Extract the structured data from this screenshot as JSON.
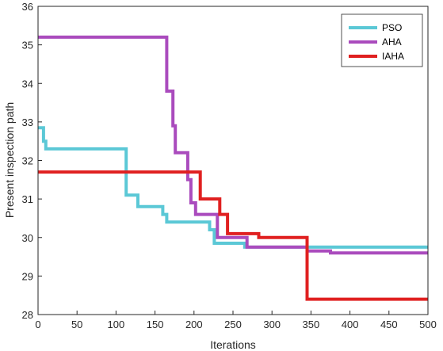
{
  "chart_data": {
    "type": "line",
    "xlabel": "Iterations",
    "ylabel": "Present inspection path",
    "xlim": [
      0,
      500
    ],
    "ylim": [
      28,
      36
    ],
    "xticks": [
      "0",
      "50",
      "100",
      "150",
      "200",
      "250",
      "300",
      "350",
      "400",
      "450",
      "500"
    ],
    "yticks": [
      "28",
      "29",
      "30",
      "31",
      "32",
      "33",
      "34",
      "35",
      "36"
    ],
    "legend_position": "top-right",
    "grid": false,
    "series": [
      {
        "name": "PSO",
        "color": "#5bc8d6",
        "points": [
          [
            0,
            32.85
          ],
          [
            7,
            32.85
          ],
          [
            7,
            32.5
          ],
          [
            10,
            32.5
          ],
          [
            10,
            32.3
          ],
          [
            113,
            32.3
          ],
          [
            113,
            31.1
          ],
          [
            128,
            31.1
          ],
          [
            128,
            30.8
          ],
          [
            160,
            30.8
          ],
          [
            160,
            30.6
          ],
          [
            165,
            30.6
          ],
          [
            165,
            30.4
          ],
          [
            220,
            30.4
          ],
          [
            220,
            30.2
          ],
          [
            226,
            30.2
          ],
          [
            226,
            29.85
          ],
          [
            265,
            29.85
          ],
          [
            265,
            29.75
          ],
          [
            500,
            29.75
          ]
        ]
      },
      {
        "name": "AHA",
        "color": "#aa4bbd",
        "points": [
          [
            0,
            35.2
          ],
          [
            165,
            35.2
          ],
          [
            165,
            33.8
          ],
          [
            173,
            33.8
          ],
          [
            173,
            32.9
          ],
          [
            176,
            32.9
          ],
          [
            176,
            32.2
          ],
          [
            192,
            32.2
          ],
          [
            192,
            31.5
          ],
          [
            196,
            31.5
          ],
          [
            196,
            30.9
          ],
          [
            202,
            30.9
          ],
          [
            202,
            30.6
          ],
          [
            230,
            30.6
          ],
          [
            230,
            30.0
          ],
          [
            268,
            30.0
          ],
          [
            268,
            29.75
          ],
          [
            345,
            29.75
          ],
          [
            345,
            29.65
          ],
          [
            375,
            29.65
          ],
          [
            375,
            29.6
          ],
          [
            500,
            29.6
          ]
        ]
      },
      {
        "name": "IAHA",
        "color": "#e02020",
        "points": [
          [
            0,
            31.7
          ],
          [
            208,
            31.7
          ],
          [
            208,
            31.0
          ],
          [
            233,
            31.0
          ],
          [
            233,
            30.6
          ],
          [
            243,
            30.6
          ],
          [
            243,
            30.1
          ],
          [
            283,
            30.1
          ],
          [
            283,
            30.0
          ],
          [
            345,
            30.0
          ],
          [
            345,
            28.4
          ],
          [
            500,
            28.4
          ]
        ]
      }
    ]
  }
}
